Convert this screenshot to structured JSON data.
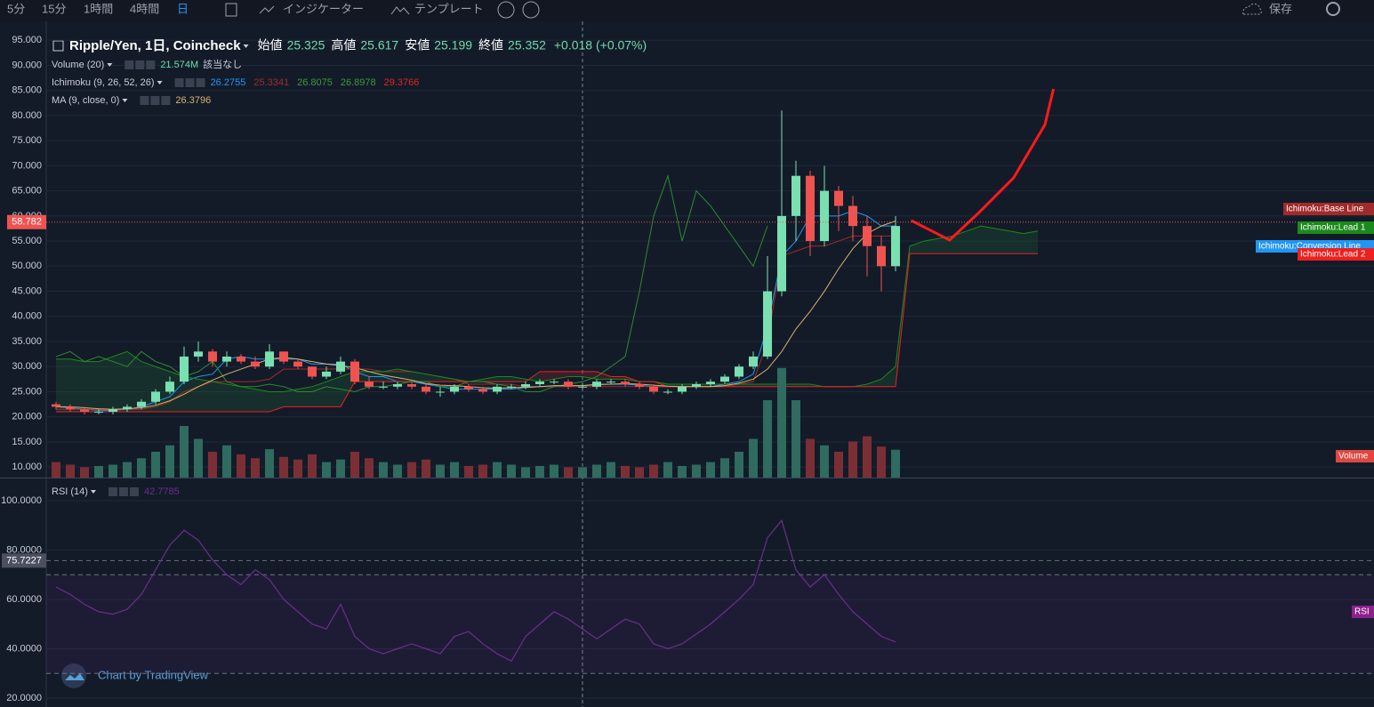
{
  "toolbar": {
    "intervals": [
      "5分",
      "15分",
      "1時間",
      "4時間",
      "日"
    ],
    "indicators": "インジケーター",
    "templates": "テンプレート",
    "save": "保存"
  },
  "chart_data": {
    "type": "candlestick",
    "title": "Ripple/Yen, 1日, Coincheck",
    "ohlc_labels": [
      "始値",
      "高値",
      "安値",
      "終値"
    ],
    "ohlc_values": [
      25.325,
      25.617,
      25.199,
      25.352
    ],
    "change": "+0.018 (+0.07%)",
    "open": [
      22.5,
      22,
      21.5,
      21,
      21,
      21.5,
      22,
      23,
      25,
      27,
      32,
      33,
      31,
      32,
      31,
      30,
      33,
      31,
      30,
      28,
      29,
      31,
      27,
      26,
      26,
      26.5,
      26,
      25,
      25,
      26,
      25.5,
      25,
      26,
      26,
      26.5,
      27,
      27,
      26,
      26,
      27,
      27,
      26.5,
      26,
      25,
      25,
      26,
      26.5,
      27,
      28,
      30,
      32,
      45,
      60,
      68,
      55,
      65,
      62,
      58,
      54,
      50
    ],
    "high": [
      23,
      22.5,
      22,
      21.5,
      22,
      22.5,
      23.5,
      25.5,
      28,
      34,
      35,
      33.5,
      33,
      32.5,
      32,
      34.5,
      33,
      31.5,
      30,
      30,
      32,
      31.5,
      28,
      27,
      27,
      27,
      26.5,
      26,
      26.5,
      26.5,
      26,
      26.5,
      26.5,
      27,
      27.5,
      27.5,
      27.5,
      26.5,
      27.5,
      27.5,
      27.5,
      27,
      26.5,
      25.5,
      26.5,
      27,
      27.5,
      28.5,
      30.5,
      33,
      52,
      81,
      71,
      69,
      70,
      66,
      64,
      60,
      56,
      60
    ],
    "low": [
      21.5,
      21,
      20.5,
      20.5,
      20.5,
      21,
      21.5,
      22.5,
      24.5,
      26.5,
      31,
      30,
      30,
      30.5,
      29.5,
      29.5,
      30.5,
      29.5,
      27.5,
      27.5,
      28.5,
      26.5,
      25.5,
      25.5,
      25.5,
      25.5,
      24.5,
      24,
      24.5,
      25,
      24.5,
      24.5,
      25.5,
      25.5,
      26,
      26.5,
      25.5,
      25.5,
      25.5,
      26.5,
      26,
      25.5,
      24.5,
      24.5,
      24.5,
      25.5,
      26,
      26.5,
      27.5,
      29.5,
      31.5,
      44,
      55,
      52,
      54,
      57,
      55,
      48,
      45,
      49
    ],
    "close": [
      22,
      21.5,
      21,
      21,
      21.5,
      22,
      23,
      25,
      27,
      32,
      33,
      31,
      32,
      31,
      30,
      33,
      31,
      30,
      28,
      29,
      31,
      27,
      26,
      26,
      26.5,
      26,
      25,
      25,
      26,
      25.5,
      25,
      26,
      26,
      26.5,
      27,
      27,
      26,
      26,
      27,
      27,
      26.5,
      26,
      25,
      25,
      26,
      26.5,
      27,
      28,
      30,
      32,
      45,
      60,
      68,
      55,
      65,
      62,
      58,
      54,
      50,
      58
    ],
    "up_color": "#7ae0b0",
    "down_color": "#ef5350",
    "ylim": [
      7.9,
      97.7
    ],
    "yticks": [
      {
        "value": 10,
        "label": "10.000"
      },
      {
        "value": 15,
        "label": "15.000"
      },
      {
        "value": 20,
        "label": "20.000"
      },
      {
        "value": 25,
        "label": "25.000"
      },
      {
        "value": 30,
        "label": "30.000"
      },
      {
        "value": 35,
        "label": "35.000"
      },
      {
        "value": 40,
        "label": "40.000"
      },
      {
        "value": 45,
        "label": "45.000"
      },
      {
        "value": 50,
        "label": "50.000"
      },
      {
        "value": 55,
        "label": "55.000"
      },
      {
        "value": 60,
        "label": "60.000"
      },
      {
        "value": 65,
        "label": "65.000"
      },
      {
        "value": 70,
        "label": "70.000"
      },
      {
        "value": 75,
        "label": "75.000"
      },
      {
        "value": 80,
        "label": "80.000"
      },
      {
        "value": 85,
        "label": "85.000"
      },
      {
        "value": 90,
        "label": "90.000"
      },
      {
        "value": 95,
        "label": "95.000"
      }
    ],
    "grid": true,
    "last_price": 58.782,
    "last_price_color": "#ef5350",
    "volume": {
      "name": "Volume (20)",
      "value": "21.574M",
      "note": "該当なし",
      "label": "Volume",
      "up_color": "#2f6b5e",
      "down_color": "#7b2f34",
      "values": [
        12,
        10,
        8,
        9,
        10,
        12,
        15,
        20,
        25,
        40,
        30,
        20,
        25,
        18,
        15,
        22,
        16,
        14,
        18,
        12,
        14,
        20,
        15,
        12,
        10,
        12,
        14,
        10,
        12,
        9,
        10,
        12,
        10,
        8,
        9,
        10,
        8,
        8,
        10,
        12,
        9,
        8,
        10,
        12,
        9,
        10,
        12,
        15,
        20,
        30,
        60,
        85,
        60,
        30,
        25,
        20,
        28,
        32,
        24,
        21.574
      ]
    },
    "ichimoku": {
      "name": "Ichimoku (9, 26, 52, 26)",
      "values": [
        26.2755,
        25.3341,
        26.8075,
        26.8978,
        29.3766
      ],
      "value_colors": [
        "#2196f3",
        "#a12a2a",
        "#3c9a3c",
        "#3c9a3c",
        "#e52020"
      ],
      "series": [
        {
          "name": "Ichimoku:Conversion Line",
          "color": "#2196f3",
          "values": [
            22,
            21.8,
            21.5,
            21.3,
            21.3,
            21.5,
            22,
            23,
            24,
            27,
            28,
            28.5,
            31.5,
            32,
            31.5,
            31.5,
            31.5,
            31.5,
            30.5,
            30.5,
            30.5,
            29,
            28,
            28,
            27,
            27,
            26.5,
            26,
            25.5,
            25.5,
            25.5,
            25.5,
            25.5,
            25.8,
            26,
            26,
            26.2,
            26.2,
            26.5,
            26.5,
            26.5,
            26.3,
            26,
            26,
            26,
            26,
            26,
            26.5,
            27,
            28.5,
            38,
            52,
            55,
            60,
            60,
            60,
            61,
            60,
            58,
            58
          ]
        },
        {
          "name": "Ichimoku:Base Line",
          "color": "#a12a2a",
          "values": [
            21.5,
            21.5,
            21.5,
            21.5,
            21.5,
            21.5,
            21.5,
            22,
            23,
            25,
            26,
            27,
            27,
            27,
            27,
            27.5,
            29.5,
            29.5,
            29.5,
            29.5,
            29.5,
            29.5,
            29.5,
            29,
            29,
            29,
            28.5,
            28,
            27.5,
            26.5,
            26.5,
            26.5,
            26.5,
            26,
            26,
            26,
            26,
            26,
            26,
            26,
            26,
            26,
            26,
            26,
            26,
            26,
            26,
            26,
            26.5,
            27,
            35,
            52,
            53,
            54,
            54,
            55,
            56,
            56,
            56,
            56
          ]
        },
        {
          "name": "Ichimoku:Lead 1",
          "color": "#1b8a1b",
          "values": [
            31.5,
            31.5,
            31,
            31,
            32,
            33,
            31,
            30,
            29,
            28,
            27.5,
            27,
            26.5,
            26,
            25.5,
            25,
            25,
            25.5,
            26,
            27,
            28,
            29,
            29,
            29,
            29.5,
            29,
            28.5,
            28,
            27.5,
            27,
            27.5,
            28,
            28,
            27.5,
            27,
            27.5,
            28,
            28,
            27.5,
            27.5,
            27.5,
            27,
            27,
            26.5,
            26.5,
            26.5,
            26.5,
            26.5,
            26.5,
            26.5,
            26.5,
            26.5,
            26.5,
            26.5,
            26,
            26,
            26,
            26.5,
            27.5,
            30,
            54,
            55,
            55.5,
            56,
            57,
            58,
            57.5,
            57,
            56.5,
            57
          ]
        },
        {
          "name": "Ichimoku:Lead 2",
          "color": "#ef1f1f",
          "values": [
            21,
            21,
            21,
            21,
            21,
            21,
            21,
            21,
            21,
            21,
            21,
            21,
            21,
            21,
            21,
            21,
            22,
            22,
            22,
            22,
            22,
            27,
            27,
            27,
            27,
            27,
            27,
            27,
            27,
            27,
            27,
            27,
            27,
            27,
            29,
            29,
            29,
            29,
            29,
            28,
            28,
            27,
            27,
            26,
            26,
            26,
            26,
            26,
            26,
            26,
            26,
            26,
            26,
            26,
            26,
            26,
            26,
            26,
            26,
            26,
            52.5,
            52.5,
            52.5,
            52.5,
            52.5,
            52.5,
            52.5,
            52.5,
            52.5,
            52.5
          ]
        }
      ],
      "lagging": {
        "color": "#2e8b2e",
        "values": [
          32,
          33,
          31,
          32,
          31,
          30,
          33,
          31,
          30,
          28,
          29,
          31,
          27,
          26,
          26,
          26.5,
          26,
          25,
          25,
          26,
          25.5,
          25,
          26,
          26,
          26.5,
          27,
          27,
          26,
          26,
          27,
          27,
          26.5,
          26,
          25,
          25,
          26,
          26.5,
          27,
          28,
          30,
          32,
          45,
          60,
          68,
          55,
          65,
          62,
          58,
          54,
          50,
          58,
          null,
          null,
          null,
          null,
          null,
          null,
          null,
          null,
          null
        ]
      }
    },
    "ma": {
      "name": "MA (9, close, 0)",
      "value": 26.3796,
      "color": "#d8b36a",
      "values": [
        22,
        22,
        21.8,
        21.6,
        21.5,
        21.6,
        21.8,
        22.3,
        23.2,
        24.5,
        26,
        27.3,
        28.5,
        29.5,
        30.5,
        31.5,
        31.8,
        31.5,
        31,
        30.5,
        30.2,
        29.8,
        29,
        28.3,
        27.8,
        27.3,
        26.6,
        26.3,
        26.2,
        26,
        25.8,
        25.7,
        25.8,
        25.9,
        26,
        26.2,
        26.2,
        26.2,
        26.4,
        26.5,
        26.6,
        26.5,
        26.3,
        26.1,
        26,
        26,
        26,
        26.2,
        26.7,
        27.5,
        29.5,
        33,
        37.5,
        41,
        45,
        49.5,
        53.5,
        56.5,
        58,
        59
      ]
    },
    "drawing": {
      "color": "#ff1a1a",
      "x": [
        60.1,
        62.8,
        64.8,
        67.3,
        69.5,
        70.1
      ],
      "values": [
        59.1,
        55.2,
        60.5,
        67.6,
        78.2,
        85.3
      ]
    },
    "rsi": {
      "name": "RSI (14)",
      "value": 42.7785,
      "label": "RSI",
      "color": "#6a2f8a",
      "ylim": [
        16.4,
        109
      ],
      "yticks": [
        {
          "value": 20,
          "label": "20.0000"
        },
        {
          "value": 40,
          "label": "40.0000"
        },
        {
          "value": 60,
          "label": "60.0000"
        },
        {
          "value": 80,
          "label": "80.0000"
        },
        {
          "value": 100,
          "label": "100.0000"
        }
      ],
      "bands": [
        30,
        70
      ],
      "marker": 75.7227,
      "values": [
        65,
        62,
        58,
        55,
        54,
        56,
        62,
        72,
        82,
        88,
        84,
        76,
        70,
        66,
        72,
        68,
        60,
        55,
        50,
        48,
        58,
        45,
        40,
        38,
        40,
        42,
        40,
        38,
        45,
        47,
        42,
        38,
        35,
        45,
        50,
        55,
        52,
        48,
        44,
        48,
        52,
        50,
        42,
        40,
        42,
        46,
        50,
        55,
        60,
        66,
        85,
        92,
        72,
        65,
        70,
        62,
        55,
        50,
        45,
        42.7785
      ]
    },
    "attribution": "Chart by TradingView"
  }
}
